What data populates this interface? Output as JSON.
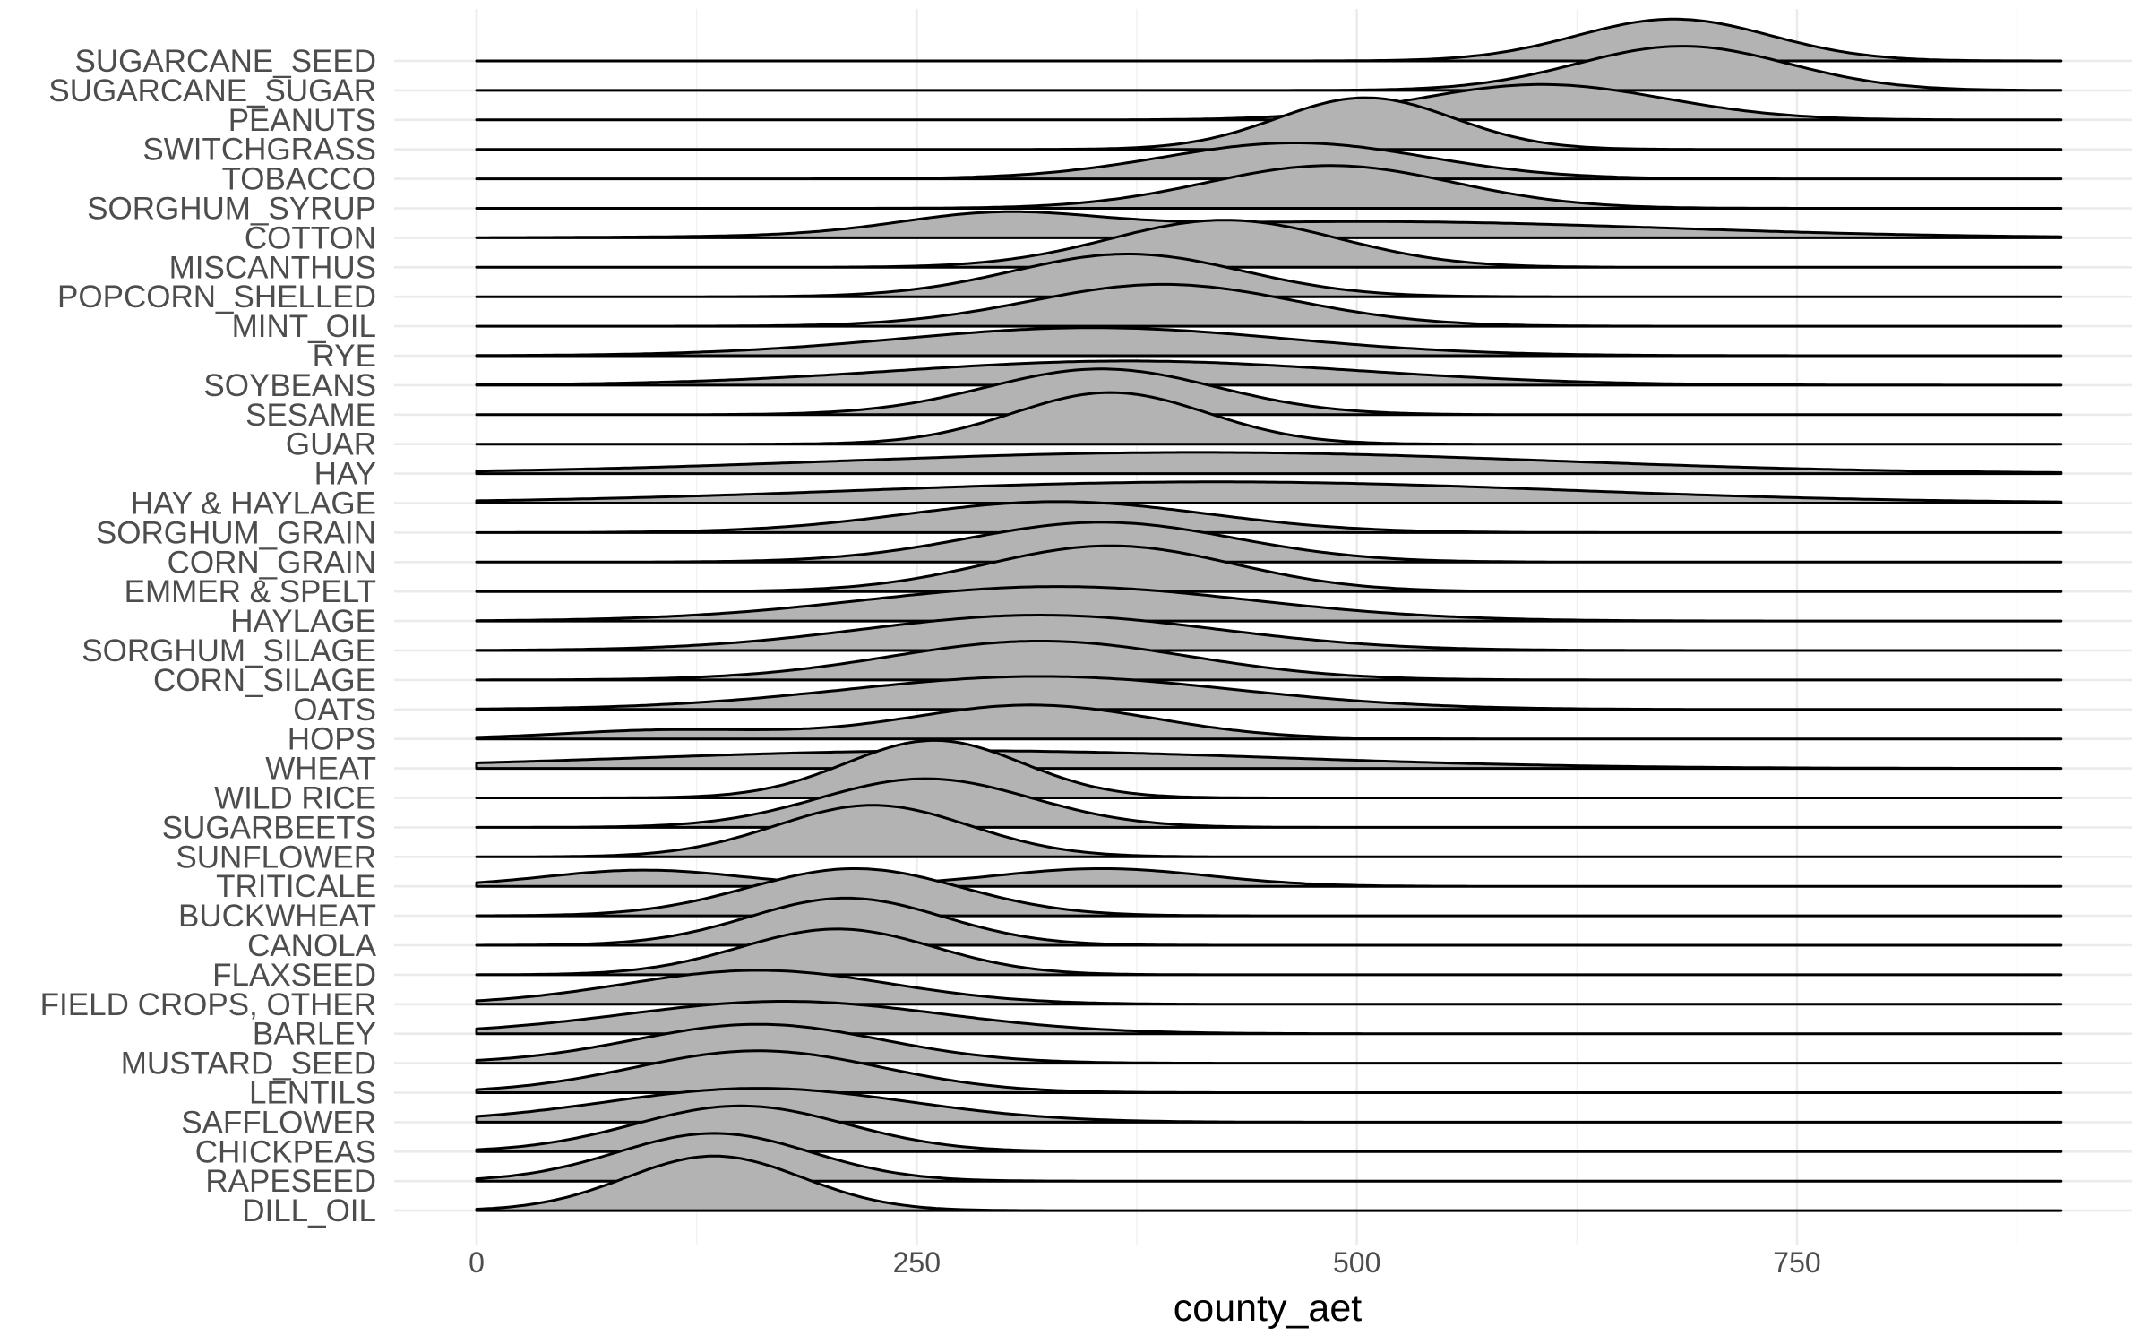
{
  "chart_data": {
    "type": "ridgeline",
    "title": "",
    "xlabel": "county_aet",
    "ylabel": "",
    "xlim": [
      -20,
      900
    ],
    "x_ticks": [
      0,
      250,
      500,
      750
    ],
    "grid": true,
    "fill_color": "#b3b3b3",
    "line_color": "#000000",
    "categories": [
      "SUGARCANE_SEED",
      "SUGARCANE_SUGAR",
      "PEANUTS",
      "SWITCHGRASS",
      "TOBACCO",
      "SORGHUM_SYRUP",
      "COTTON",
      "MISCANTHUS",
      "POPCORN_SHELLED",
      "MINT_OIL",
      "RYE",
      "SOYBEANS",
      "SESAME",
      "GUAR",
      "HAY",
      "HAY & HAYLAGE",
      "SORGHUM_GRAIN",
      "CORN_GRAIN",
      "EMMER & SPELT",
      "HAYLAGE",
      "SORGHUM_SILAGE",
      "CORN_SILAGE",
      "OATS",
      "HOPS",
      "WHEAT",
      "WILD RICE",
      "SUGARBEETS",
      "SUNFLOWER",
      "TRITICALE",
      "BUCKWHEAT",
      "CANOLA",
      "FLAXSEED",
      "FIELD CROPS, OTHER",
      "BARLEY",
      "MUSTARD_SEED",
      "LENTILS",
      "SAFFLOWER",
      "CHICKPEAS",
      "RAPESEED",
      "DILL_OIL"
    ],
    "series": [
      {
        "name": "SUGARCANE_SEED",
        "peaks": [
          {
            "mean": 680,
            "sd": 55,
            "height": 1.42
          }
        ]
      },
      {
        "name": "SUGARCANE_SUGAR",
        "peaks": [
          {
            "mean": 685,
            "sd": 60,
            "height": 1.5
          }
        ]
      },
      {
        "name": "PEANUTS",
        "peaks": [
          {
            "mean": 605,
            "sd": 70,
            "height": 1.2
          }
        ]
      },
      {
        "name": "SWITCHGRASS",
        "peaks": [
          {
            "mean": 505,
            "sd": 50,
            "height": 1.75
          }
        ]
      },
      {
        "name": "TOBACCO",
        "peaks": [
          {
            "mean": 465,
            "sd": 75,
            "height": 1.22
          }
        ]
      },
      {
        "name": "SORGHUM_SYRUP",
        "peaks": [
          {
            "mean": 485,
            "sd": 70,
            "height": 1.45
          }
        ]
      },
      {
        "name": "COTTON",
        "peaks": [
          {
            "mean": 295,
            "sd": 55,
            "height": 0.62
          },
          {
            "mean": 505,
            "sd": 170,
            "height": 0.55
          }
        ]
      },
      {
        "name": "MISCANTHUS",
        "peaks": [
          {
            "mean": 425,
            "sd": 65,
            "height": 1.6
          }
        ]
      },
      {
        "name": "POPCORN_SHELLED",
        "peaks": [
          {
            "mean": 370,
            "sd": 65,
            "height": 1.45
          }
        ]
      },
      {
        "name": "MINT_OIL",
        "peaks": [
          {
            "mean": 390,
            "sd": 75,
            "height": 1.42
          }
        ]
      },
      {
        "name": "RYE",
        "peaks": [
          {
            "mean": 350,
            "sd": 110,
            "height": 0.95
          }
        ]
      },
      {
        "name": "SOYBEANS",
        "peaks": [
          {
            "mean": 370,
            "sd": 130,
            "height": 0.82
          }
        ]
      },
      {
        "name": "SESAME",
        "peaks": [
          {
            "mean": 355,
            "sd": 65,
            "height": 1.55
          }
        ]
      },
      {
        "name": "GUAR",
        "peaks": [
          {
            "mean": 360,
            "sd": 55,
            "height": 1.75
          }
        ]
      },
      {
        "name": "HAY",
        "peaks": [
          {
            "mean": 410,
            "sd": 200,
            "height": 0.72
          }
        ]
      },
      {
        "name": "HAY & HAYLAGE",
        "peaks": [
          {
            "mean": 420,
            "sd": 200,
            "height": 0.72
          }
        ]
      },
      {
        "name": "SORGHUM_GRAIN",
        "peaks": [
          {
            "mean": 330,
            "sd": 85,
            "height": 1.05
          }
        ]
      },
      {
        "name": "CORN_GRAIN",
        "peaks": [
          {
            "mean": 355,
            "sd": 75,
            "height": 1.35
          }
        ]
      },
      {
        "name": "EMMER & SPELT",
        "peaks": [
          {
            "mean": 360,
            "sd": 70,
            "height": 1.55
          }
        ]
      },
      {
        "name": "HAYLAGE",
        "peaks": [
          {
            "mean": 330,
            "sd": 110,
            "height": 1.17
          }
        ]
      },
      {
        "name": "SORGHUM_SILAGE",
        "peaks": [
          {
            "mean": 320,
            "sd": 100,
            "height": 1.2
          }
        ]
      },
      {
        "name": "CORN_SILAGE",
        "peaks": [
          {
            "mean": 320,
            "sd": 85,
            "height": 1.32
          }
        ]
      },
      {
        "name": "OATS",
        "peaks": [
          {
            "mean": 320,
            "sd": 110,
            "height": 1.12
          }
        ]
      },
      {
        "name": "HOPS",
        "peaks": [
          {
            "mean": 315,
            "sd": 70,
            "height": 1.15
          },
          {
            "mean": 110,
            "sd": 60,
            "height": 0.3
          }
        ]
      },
      {
        "name": "WHEAT",
        "peaks": [
          {
            "mean": 275,
            "sd": 180,
            "height": 0.6
          }
        ]
      },
      {
        "name": "WILD RICE",
        "peaks": [
          {
            "mean": 260,
            "sd": 50,
            "height": 1.95
          }
        ]
      },
      {
        "name": "SUGARBEETS",
        "peaks": [
          {
            "mean": 255,
            "sd": 60,
            "height": 1.65
          }
        ]
      },
      {
        "name": "SUNFLOWER",
        "peaks": [
          {
            "mean": 225,
            "sd": 55,
            "height": 1.75
          }
        ]
      },
      {
        "name": "TRITICALE",
        "peaks": [
          {
            "mean": 95,
            "sd": 55,
            "height": 0.55
          },
          {
            "mean": 355,
            "sd": 60,
            "height": 0.6
          }
        ]
      },
      {
        "name": "BUCKWHEAT",
        "peaks": [
          {
            "mean": 215,
            "sd": 60,
            "height": 1.6
          }
        ]
      },
      {
        "name": "CANOLA",
        "peaks": [
          {
            "mean": 210,
            "sd": 55,
            "height": 1.6
          }
        ]
      },
      {
        "name": "FLAXSEED",
        "peaks": [
          {
            "mean": 205,
            "sd": 55,
            "height": 1.55
          }
        ]
      },
      {
        "name": "FIELD CROPS, OTHER",
        "peaks": [
          {
            "mean": 160,
            "sd": 75,
            "height": 1.15
          }
        ]
      },
      {
        "name": "BARLEY",
        "peaks": [
          {
            "mean": 175,
            "sd": 90,
            "height": 1.1
          }
        ]
      },
      {
        "name": "MUSTARD_SEED",
        "peaks": [
          {
            "mean": 160,
            "sd": 70,
            "height": 1.32
          }
        ]
      },
      {
        "name": "LENTILS",
        "peaks": [
          {
            "mean": 160,
            "sd": 70,
            "height": 1.42
          }
        ]
      },
      {
        "name": "SAFFLOWER",
        "peaks": [
          {
            "mean": 160,
            "sd": 85,
            "height": 1.15
          }
        ]
      },
      {
        "name": "CHICKPEAS",
        "peaks": [
          {
            "mean": 150,
            "sd": 60,
            "height": 1.55
          }
        ]
      },
      {
        "name": "RAPESEED",
        "peaks": [
          {
            "mean": 135,
            "sd": 55,
            "height": 1.62
          }
        ]
      },
      {
        "name": "DILL_OIL",
        "peaks": [
          {
            "mean": 135,
            "sd": 50,
            "height": 1.85
          }
        ]
      }
    ]
  }
}
